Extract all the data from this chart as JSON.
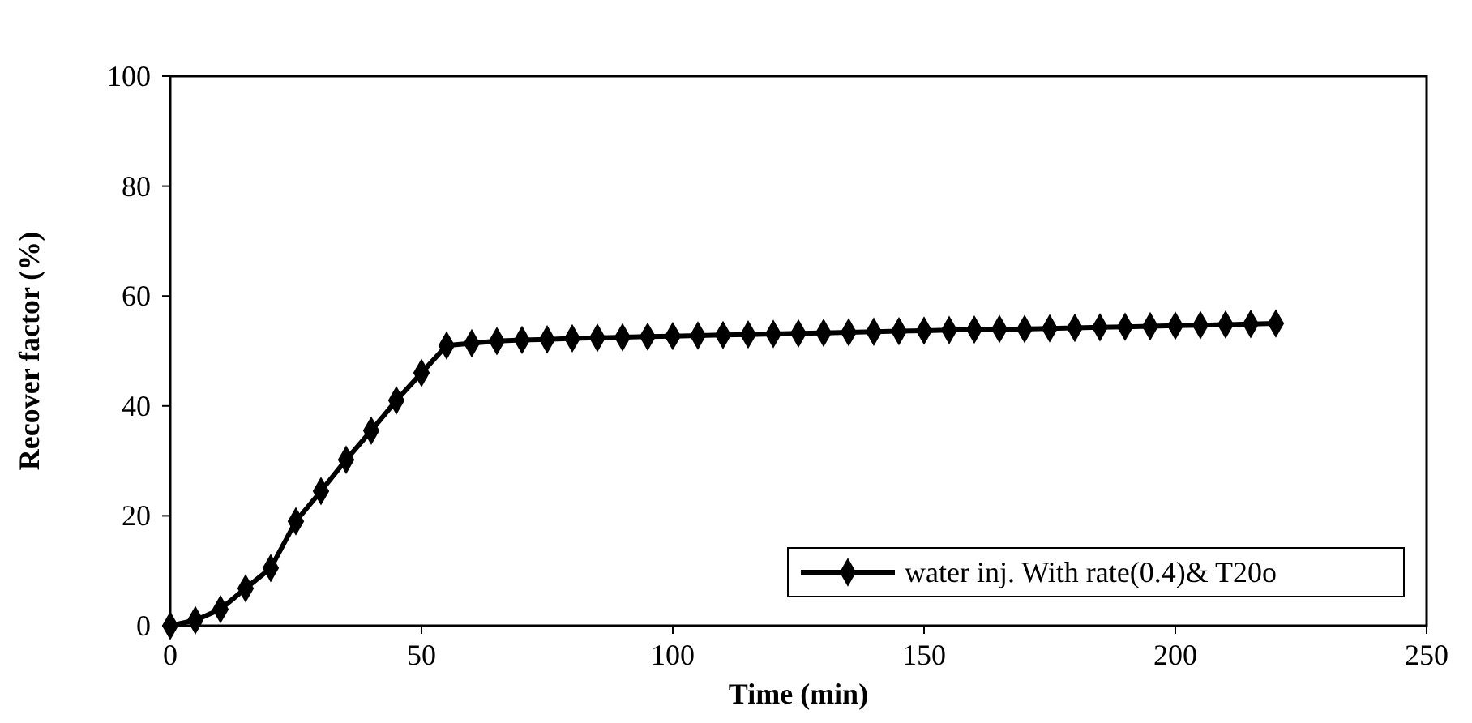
{
  "chart_data": {
    "type": "line",
    "xlabel": "Time (min)",
    "ylabel": "Recover factor (%)",
    "x": [
      0,
      5,
      10,
      15,
      20,
      25,
      30,
      35,
      40,
      45,
      50,
      55,
      60,
      65,
      70,
      75,
      80,
      85,
      90,
      95,
      100,
      105,
      110,
      115,
      120,
      125,
      130,
      135,
      140,
      145,
      150,
      155,
      160,
      165,
      170,
      175,
      180,
      185,
      190,
      195,
      200,
      205,
      210,
      215,
      220
    ],
    "series": [
      {
        "name": "water inj. With rate(0.4)& T20o",
        "color": "#000000",
        "values": [
          0,
          1,
          3,
          6.8,
          10.5,
          19,
          24.5,
          30.2,
          35.5,
          41,
          46,
          51,
          51.4,
          51.8,
          52,
          52.1,
          52.3,
          52.4,
          52.5,
          52.6,
          52.7,
          52.8,
          52.9,
          53,
          53.1,
          53.2,
          53.3,
          53.4,
          53.5,
          53.6,
          53.7,
          53.8,
          53.9,
          54,
          54,
          54.1,
          54.2,
          54.3,
          54.4,
          54.5,
          54.6,
          54.7,
          54.8,
          54.9,
          55
        ]
      }
    ],
    "xlim": [
      0,
      250
    ],
    "xticks": [
      0,
      50,
      100,
      150,
      200,
      250
    ],
    "ylim": [
      0,
      100
    ],
    "yticks": [
      0,
      20,
      40,
      60,
      80,
      100
    ],
    "grid": false,
    "legend": "bottom right",
    "marker": "diamond",
    "line_style": "solid"
  }
}
